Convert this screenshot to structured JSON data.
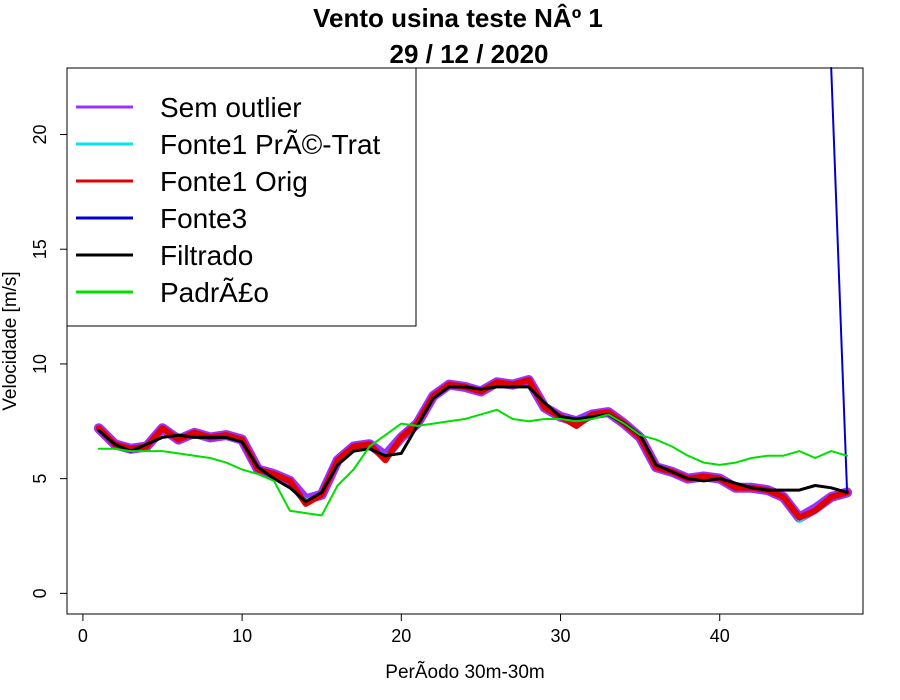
{
  "chart_data": {
    "type": "line",
    "title": "Vento usina teste NÂº 1",
    "subtitle": "29 / 12 / 2020",
    "xlabel": "PerÃ­odo 30m-30m",
    "ylabel": "Velocidade [m/s]",
    "xlim": [
      -1,
      49
    ],
    "ylim": [
      -0.9,
      22.9
    ],
    "xticks": [
      0,
      10,
      20,
      30,
      40
    ],
    "yticks": [
      0,
      5,
      10,
      15,
      20
    ],
    "legend_position": "top-left",
    "x": [
      1,
      2,
      3,
      4,
      5,
      6,
      7,
      8,
      9,
      10,
      11,
      12,
      13,
      14,
      15,
      16,
      17,
      18,
      19,
      20,
      21,
      22,
      23,
      24,
      25,
      26,
      27,
      28,
      29,
      30,
      31,
      32,
      33,
      34,
      35,
      36,
      37,
      38,
      39,
      40,
      41,
      42,
      43,
      44,
      45,
      46,
      47,
      48
    ],
    "series": [
      {
        "name": "Sem outlier",
        "color": "#9b30ff",
        "width": 10,
        "values": [
          7.2,
          6.5,
          6.3,
          6.4,
          7.2,
          6.7,
          7.0,
          6.8,
          6.9,
          6.7,
          5.4,
          5.2,
          4.9,
          4.1,
          4.3,
          5.8,
          6.4,
          6.5,
          6.0,
          6.8,
          7.4,
          8.6,
          9.1,
          9.0,
          8.8,
          9.2,
          9.1,
          9.3,
          8.1,
          7.7,
          7.5,
          7.8,
          7.9,
          7.4,
          6.8,
          5.5,
          5.3,
          5.0,
          5.1,
          5.0,
          4.6,
          4.6,
          4.5,
          4.2,
          3.3,
          3.7,
          4.2,
          4.4
        ]
      },
      {
        "name": "Fonte1 PrÃ©-Trat",
        "color": "#00e5ee",
        "width": 2,
        "values": [
          7.2,
          6.5,
          6.3,
          6.4,
          7.2,
          6.7,
          7.0,
          6.8,
          6.9,
          6.7,
          5.4,
          5.2,
          4.9,
          4.1,
          4.3,
          5.8,
          6.4,
          6.5,
          6.0,
          6.8,
          7.4,
          8.6,
          9.1,
          9.0,
          8.8,
          9.2,
          9.1,
          9.3,
          8.1,
          7.7,
          7.5,
          7.8,
          7.9,
          7.4,
          6.8,
          5.5,
          5.3,
          5.0,
          5.1,
          5.0,
          4.6,
          4.6,
          4.5,
          4.2,
          3.1,
          3.6,
          4.2,
          4.4
        ]
      },
      {
        "name": "Fonte1 Orig",
        "color": "#e00000",
        "width": 6,
        "values": [
          7.2,
          6.5,
          6.3,
          6.4,
          7.2,
          6.7,
          7.0,
          6.8,
          6.9,
          6.7,
          5.4,
          5.2,
          4.9,
          3.9,
          4.3,
          5.8,
          6.4,
          6.5,
          5.8,
          6.8,
          7.4,
          8.6,
          9.1,
          9.0,
          8.8,
          9.2,
          9.1,
          9.3,
          8.1,
          7.7,
          7.3,
          7.8,
          7.9,
          7.4,
          6.8,
          5.5,
          5.3,
          5.0,
          5.1,
          5.0,
          4.6,
          4.6,
          4.5,
          4.2,
          3.3,
          3.6,
          4.2,
          4.4
        ]
      },
      {
        "name": "Fonte3",
        "color": "#0000cd",
        "width": 2,
        "values": [
          null,
          null,
          null,
          null,
          null,
          null,
          null,
          null,
          null,
          null,
          null,
          null,
          null,
          null,
          null,
          null,
          null,
          null,
          null,
          null,
          null,
          null,
          null,
          null,
          null,
          null,
          null,
          null,
          null,
          null,
          null,
          null,
          null,
          null,
          null,
          null,
          null,
          null,
          null,
          null,
          null,
          null,
          null,
          null,
          null,
          null,
          22.9,
          4.4
        ]
      },
      {
        "name": "Filtrado",
        "color": "#000000",
        "width": 3,
        "values": [
          7.1,
          6.5,
          6.2,
          6.5,
          6.8,
          6.9,
          6.8,
          6.8,
          6.8,
          6.6,
          5.5,
          5.0,
          4.6,
          4.0,
          4.4,
          5.6,
          6.2,
          6.3,
          6.0,
          6.1,
          7.3,
          8.5,
          9.0,
          9.0,
          8.9,
          9.0,
          9.0,
          9.0,
          8.3,
          7.7,
          7.6,
          7.7,
          7.8,
          7.4,
          6.9,
          5.6,
          5.3,
          5.0,
          4.9,
          5.0,
          4.8,
          4.6,
          4.5,
          4.5,
          4.5,
          4.7,
          4.6,
          4.4
        ]
      },
      {
        "name": "PadrÃ£o",
        "color": "#00e000",
        "width": 2,
        "values": [
          6.3,
          6.3,
          6.2,
          6.2,
          6.2,
          6.1,
          6.0,
          5.9,
          5.7,
          5.4,
          5.2,
          4.9,
          3.6,
          3.5,
          3.4,
          4.7,
          5.4,
          6.4,
          6.9,
          7.4,
          7.3,
          7.4,
          7.5,
          7.6,
          7.8,
          8.0,
          7.6,
          7.5,
          7.6,
          7.6,
          7.5,
          7.6,
          7.8,
          7.4,
          6.9,
          6.7,
          6.4,
          6.0,
          5.7,
          5.6,
          5.7,
          5.9,
          6.0,
          6.0,
          6.2,
          5.9,
          6.2,
          6.0
        ]
      }
    ]
  }
}
